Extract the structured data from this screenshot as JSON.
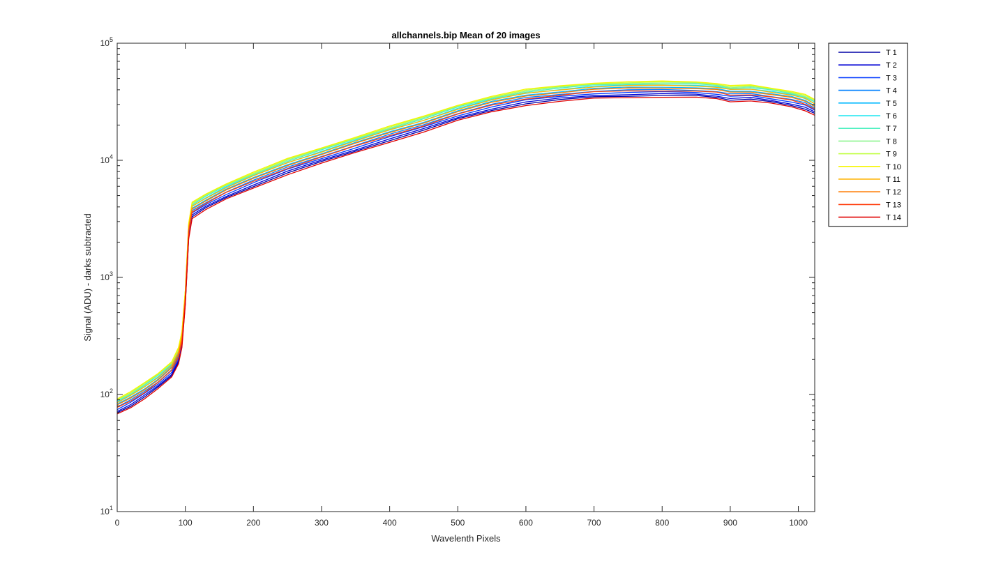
{
  "chart_data": {
    "type": "line",
    "title": "allchannels.bip  Mean of 20 images",
    "xlabel": "Wavelenth Pixels",
    "ylabel": "Signal (ADU) - darks subtracted",
    "xlim": [
      0,
      1024
    ],
    "ylim": [
      10,
      100000
    ],
    "yscale": "log",
    "x_ticks": [
      0,
      100,
      200,
      300,
      400,
      500,
      600,
      700,
      800,
      900,
      1000
    ],
    "y_ticks": [
      {
        "base": "10",
        "exp": "1",
        "value": 10
      },
      {
        "base": "10",
        "exp": "2",
        "value": 100
      },
      {
        "base": "10",
        "exp": "3",
        "value": 1000
      },
      {
        "base": "10",
        "exp": "4",
        "value": 10000
      },
      {
        "base": "10",
        "exp": "5",
        "value": 100000
      }
    ],
    "grid": false,
    "legend_position": "outside-top-right",
    "x": [
      0,
      20,
      40,
      60,
      80,
      90,
      95,
      100,
      105,
      110,
      130,
      160,
      200,
      250,
      300,
      350,
      400,
      450,
      500,
      550,
      600,
      650,
      700,
      750,
      800,
      850,
      880,
      900,
      930,
      960,
      990,
      1010,
      1024
    ],
    "base_profile": [
      70,
      80,
      95,
      115,
      145,
      190,
      260,
      600,
      2200,
      3300,
      3900,
      4800,
      6000,
      7800,
      9700,
      12000,
      14800,
      18000,
      22500,
      26800,
      30500,
      32800,
      34800,
      35500,
      35800,
      35500,
      34500,
      32800,
      33200,
      31500,
      29500,
      27500,
      25000
    ],
    "series": [
      {
        "name": "T 1",
        "color": "#0000a6",
        "scale": 1.0
      },
      {
        "name": "T 2",
        "color": "#0000d5",
        "scale": 1.03
      },
      {
        "name": "T 3",
        "color": "#0039ff",
        "scale": 1.07
      },
      {
        "name": "T 4",
        "color": "#0080ff",
        "scale": 1.12
      },
      {
        "name": "T 5",
        "color": "#00b9ff",
        "scale": 1.18
      },
      {
        "name": "T 6",
        "color": "#1ae6f0",
        "scale": 1.23
      },
      {
        "name": "T 7",
        "color": "#4cf0c0",
        "scale": 1.26
      },
      {
        "name": "T 8",
        "color": "#8ef58f",
        "scale": 1.28
      },
      {
        "name": "T 9",
        "color": "#c0ff40",
        "scale": 1.3
      },
      {
        "name": "T 10",
        "color": "#f5f500",
        "scale": 1.32
      },
      {
        "name": "T 11",
        "color": "#ffb400",
        "scale": 1.22
      },
      {
        "name": "T 12",
        "color": "#ff7a00",
        "scale": 1.16
      },
      {
        "name": "T 13",
        "color": "#ff4010",
        "scale": 1.1
      },
      {
        "name": "T 14",
        "color": "#e00000",
        "scale": 0.97
      }
    ]
  }
}
